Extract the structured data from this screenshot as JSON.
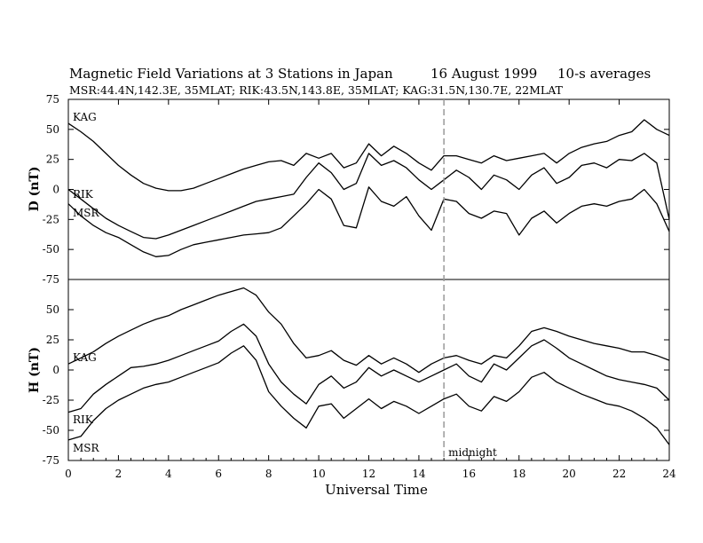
{
  "chart_data": {
    "type": "line",
    "title": {
      "main": "Magnetic Field Variations at 3 Stations in Japan",
      "date": "16 August  1999",
      "averaging": "10-s averages"
    },
    "subtitle": "MSR:44.4N,142.3E, 35MLAT;   RIK:43.5N,143.8E, 35MLAT;   KAG:31.5N,130.7E, 22MLAT",
    "xlabel": "Universal Time",
    "xlim": [
      0,
      24
    ],
    "xticks": [
      "0",
      "2",
      "4",
      "6",
      "8",
      "10",
      "12",
      "14",
      "16",
      "18",
      "20",
      "22",
      "24"
    ],
    "midnight": {
      "x": 15,
      "label": "midnight"
    },
    "colors": {
      "line": "#000000",
      "midnight_line": "#999999"
    },
    "panels": [
      {
        "ylabel": "D (nT)",
        "ylim": [
          -75,
          75
        ],
        "yticks": [
          "75",
          "50",
          "25",
          "0",
          "-25",
          "-50",
          "-75"
        ],
        "series": [
          {
            "name": "KAG",
            "x": [
              0,
              0.5,
              1,
              1.5,
              2,
              2.5,
              3,
              3.5,
              4,
              4.5,
              5,
              5.5,
              6,
              6.5,
              7,
              7.5,
              8,
              8.5,
              9,
              9.5,
              10,
              10.5,
              11,
              11.5,
              12,
              12.5,
              13,
              13.5,
              14,
              14.5,
              15,
              15.5,
              16,
              16.5,
              17,
              17.5,
              18,
              18.5,
              19,
              19.5,
              20,
              20.5,
              21,
              21.5,
              22,
              22.5,
              23,
              23.5,
              24
            ],
            "values": [
              55,
              48,
              40,
              30,
              20,
              12,
              5,
              1,
              -1,
              -1,
              1,
              5,
              9,
              13,
              17,
              20,
              23,
              24,
              20,
              30,
              26,
              30,
              18,
              22,
              38,
              28,
              36,
              30,
              22,
              16,
              28,
              28,
              25,
              22,
              28,
              24,
              26,
              28,
              30,
              22,
              30,
              35,
              38,
              40,
              45,
              48,
              58,
              50,
              45
            ]
          },
          {
            "name": "RIK",
            "x": [
              0,
              0.5,
              1,
              1.5,
              2,
              2.5,
              3,
              3.5,
              4,
              4.5,
              5,
              5.5,
              6,
              6.5,
              7,
              7.5,
              8,
              8.5,
              9,
              9.5,
              10,
              10.5,
              11,
              11.5,
              12,
              12.5,
              13,
              13.5,
              14,
              14.5,
              15,
              15.5,
              16,
              16.5,
              17,
              17.5,
              18,
              18.5,
              19,
              19.5,
              20,
              20.5,
              21,
              21.5,
              22,
              22.5,
              23,
              23.5,
              24
            ],
            "values": [
              0,
              -8,
              -16,
              -24,
              -30,
              -35,
              -40,
              -41,
              -38,
              -34,
              -30,
              -26,
              -22,
              -18,
              -14,
              -10,
              -8,
              -6,
              -4,
              10,
              22,
              14,
              0,
              5,
              30,
              20,
              24,
              18,
              8,
              0,
              8,
              16,
              10,
              0,
              12,
              8,
              0,
              12,
              18,
              5,
              10,
              20,
              22,
              18,
              25,
              24,
              30,
              22,
              -25
            ]
          },
          {
            "name": "MSR",
            "x": [
              0,
              0.5,
              1,
              1.5,
              2,
              2.5,
              3,
              3.5,
              4,
              4.5,
              5,
              5.5,
              6,
              6.5,
              7,
              7.5,
              8,
              8.5,
              9,
              9.5,
              10,
              10.5,
              11,
              11.5,
              12,
              12.5,
              13,
              13.5,
              14,
              14.5,
              15,
              15.5,
              16,
              16.5,
              17,
              17.5,
              18,
              18.5,
              19,
              19.5,
              20,
              20.5,
              21,
              21.5,
              22,
              22.5,
              23,
              23.5,
              24
            ],
            "values": [
              -12,
              -22,
              -30,
              -36,
              -40,
              -46,
              -52,
              -56,
              -55,
              -50,
              -46,
              -44,
              -42,
              -40,
              -38,
              -37,
              -36,
              -32,
              -22,
              -12,
              0,
              -8,
              -30,
              -32,
              2,
              -10,
              -14,
              -6,
              -22,
              -34,
              -8,
              -10,
              -20,
              -24,
              -18,
              -20,
              -38,
              -24,
              -18,
              -28,
              -20,
              -14,
              -12,
              -14,
              -10,
              -8,
              0,
              -12,
              -35
            ]
          }
        ]
      },
      {
        "ylabel": "H (nT)",
        "ylim": [
          -75,
          75
        ],
        "yticks": [
          "50",
          "25",
          "0",
          "-25",
          "-50",
          "-75"
        ],
        "series": [
          {
            "name": "KAG",
            "x": [
              0,
              0.5,
              1,
              1.5,
              2,
              2.5,
              3,
              3.5,
              4,
              4.5,
              5,
              5.5,
              6,
              6.5,
              7,
              7.5,
              8,
              8.5,
              9,
              9.5,
              10,
              10.5,
              11,
              11.5,
              12,
              12.5,
              13,
              13.5,
              14,
              14.5,
              15,
              15.5,
              16,
              16.5,
              17,
              17.5,
              18,
              18.5,
              19,
              19.5,
              20,
              20.5,
              21,
              21.5,
              22,
              22.5,
              23,
              23.5,
              24
            ],
            "values": [
              5,
              10,
              15,
              22,
              28,
              33,
              38,
              42,
              45,
              50,
              54,
              58,
              62,
              65,
              68,
              62,
              48,
              38,
              22,
              10,
              12,
              16,
              8,
              4,
              12,
              5,
              10,
              5,
              -2,
              5,
              10,
              12,
              8,
              5,
              12,
              10,
              20,
              32,
              35,
              32,
              28,
              25,
              22,
              20,
              18,
              15,
              15,
              12,
              8
            ]
          },
          {
            "name": "RIK",
            "x": [
              0,
              0.5,
              1,
              1.5,
              2,
              2.5,
              3,
              3.5,
              4,
              4.5,
              5,
              5.5,
              6,
              6.5,
              7,
              7.5,
              8,
              8.5,
              9,
              9.5,
              10,
              10.5,
              11,
              11.5,
              12,
              12.5,
              13,
              13.5,
              14,
              14.5,
              15,
              15.5,
              16,
              16.5,
              17,
              17.5,
              18,
              18.5,
              19,
              19.5,
              20,
              20.5,
              21,
              21.5,
              22,
              22.5,
              23,
              23.5,
              24
            ],
            "values": [
              -35,
              -32,
              -20,
              -12,
              -5,
              2,
              3,
              5,
              8,
              12,
              16,
              20,
              24,
              32,
              38,
              28,
              5,
              -10,
              -20,
              -28,
              -12,
              -5,
              -15,
              -10,
              2,
              -5,
              0,
              -5,
              -10,
              -5,
              0,
              5,
              -5,
              -10,
              5,
              0,
              10,
              20,
              25,
              18,
              10,
              5,
              0,
              -5,
              -8,
              -10,
              -12,
              -15,
              -25
            ]
          },
          {
            "name": "MSR",
            "x": [
              0,
              0.5,
              1,
              1.5,
              2,
              2.5,
              3,
              3.5,
              4,
              4.5,
              5,
              5.5,
              6,
              6.5,
              7,
              7.5,
              8,
              8.5,
              9,
              9.5,
              10,
              10.5,
              11,
              11.5,
              12,
              12.5,
              13,
              13.5,
              14,
              14.5,
              15,
              15.5,
              16,
              16.5,
              17,
              17.5,
              18,
              18.5,
              19,
              19.5,
              20,
              20.5,
              21,
              21.5,
              22,
              22.5,
              23,
              23.5,
              24
            ],
            "values": [
              -58,
              -55,
              -42,
              -32,
              -25,
              -20,
              -15,
              -12,
              -10,
              -6,
              -2,
              2,
              6,
              14,
              20,
              8,
              -18,
              -30,
              -40,
              -48,
              -30,
              -28,
              -40,
              -32,
              -24,
              -32,
              -26,
              -30,
              -36,
              -30,
              -24,
              -20,
              -30,
              -34,
              -22,
              -26,
              -18,
              -6,
              -2,
              -10,
              -15,
              -20,
              -24,
              -28,
              -30,
              -34,
              -40,
              -48,
              -62
            ]
          }
        ]
      }
    ]
  }
}
